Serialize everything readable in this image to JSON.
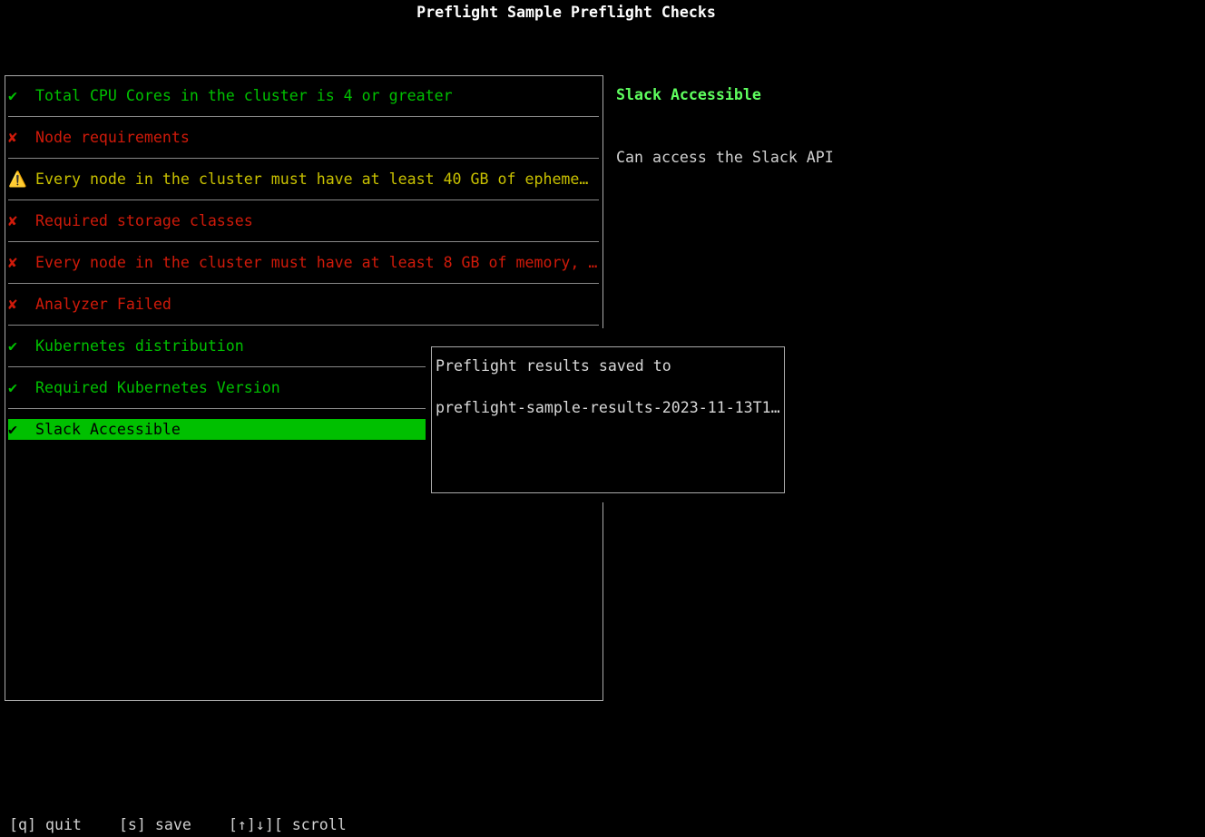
{
  "title": "Preflight Sample Preflight Checks",
  "checks": [
    {
      "status": "pass",
      "icon": "✔",
      "label": "Total CPU Cores in the cluster is 4 or greater"
    },
    {
      "status": "fail",
      "icon": "✘",
      "label": "Node requirements"
    },
    {
      "status": "warn",
      "icon": "⚠️",
      "label": "Every node in the cluster must have at least 40 GB of epheme…"
    },
    {
      "status": "fail",
      "icon": "✘",
      "label": "Required storage classes"
    },
    {
      "status": "fail",
      "icon": "✘",
      "label": "Every node in the cluster must have at least 8 GB of memory, …"
    },
    {
      "status": "fail",
      "icon": "✘",
      "label": "Analyzer Failed"
    },
    {
      "status": "pass",
      "icon": "✔",
      "label": "Kubernetes distribution"
    },
    {
      "status": "pass",
      "icon": "✔",
      "label": "Required Kubernetes Version"
    },
    {
      "status": "pass",
      "icon": "✔",
      "label": "Slack Accessible",
      "selected": true
    }
  ],
  "detail": {
    "title": "Slack Accessible",
    "description": "Can access the Slack API"
  },
  "popup": {
    "line1": "Preflight results saved to",
    "line2": "preflight-sample-results-2023-11-13T1…"
  },
  "footer": {
    "quit": "[q] quit",
    "save": "[s] save",
    "scroll": "[↑]↓][ scroll"
  },
  "colors": {
    "pass": "#00c000",
    "fail": "#d01a0a",
    "warn": "#c8c000",
    "selected_bg": "#00c000",
    "detail_title": "#5fff5f"
  }
}
